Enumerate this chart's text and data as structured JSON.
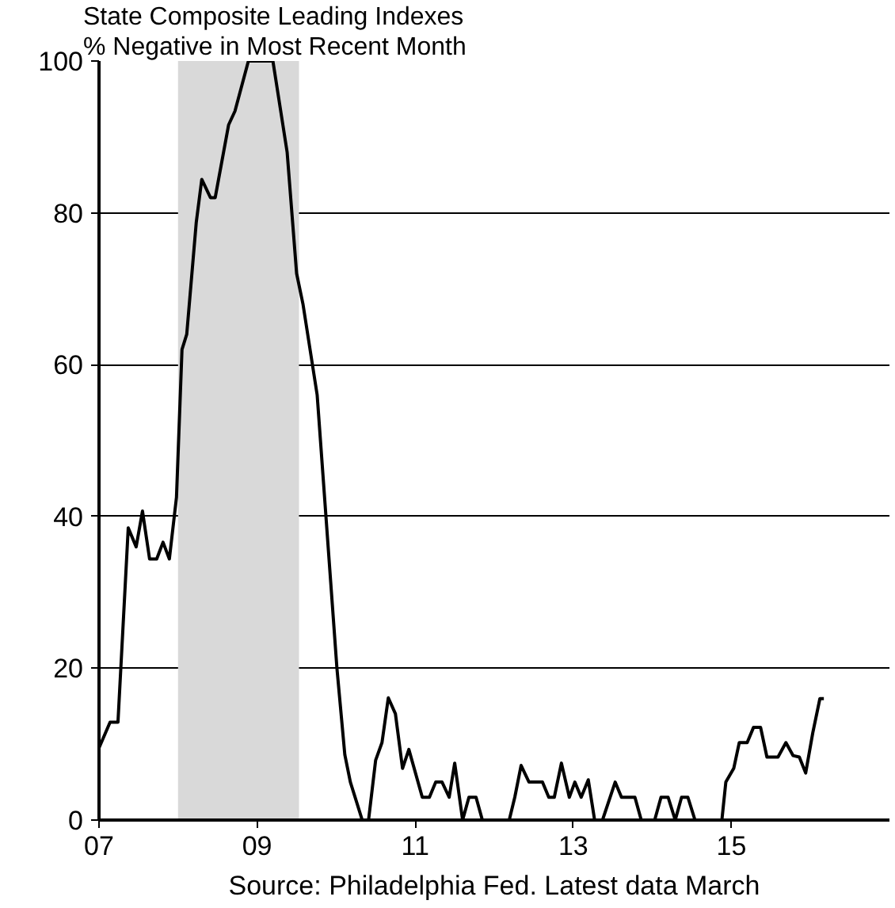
{
  "chart_data": {
    "type": "line",
    "title": "State Composite Leading Indexes",
    "subtitle": "% Negative in Most Recent Month",
    "annotations": [
      "Source: Philadelphia Fed. Latest data March"
    ],
    "x": [
      2007.0,
      2007.14,
      2007.24,
      2007.37,
      2007.47,
      2007.55,
      2007.64,
      2007.73,
      2007.81,
      2007.89,
      2007.98,
      2008.05,
      2008.11,
      2008.23,
      2008.3,
      2008.41,
      2008.47,
      2008.64,
      2008.72,
      2008.89,
      2009.2,
      2009.38,
      2009.5,
      2009.58,
      2009.76,
      2010.01,
      2010.11,
      2010.18,
      2010.33,
      2010.41,
      2010.5,
      2010.58,
      2010.66,
      2010.75,
      2010.84,
      2010.92,
      2011.09,
      2011.18,
      2011.26,
      2011.34,
      2011.43,
      2011.5,
      2011.6,
      2011.68,
      2011.77,
      2011.85,
      2012.19,
      2012.26,
      2012.34,
      2012.44,
      2012.61,
      2012.69,
      2012.76,
      2012.85,
      2012.95,
      2013.02,
      2013.1,
      2013.19,
      2013.27,
      2013.37,
      2013.53,
      2013.61,
      2013.78,
      2013.86,
      2014.03,
      2014.11,
      2014.2,
      2014.29,
      2014.37,
      2014.45,
      2014.54,
      2014.88,
      2014.93,
      2015.03,
      2015.1,
      2015.2,
      2015.28,
      2015.37,
      2015.45,
      2015.59,
      2015.69,
      2015.78,
      2015.86,
      2015.94,
      2016.03,
      2016.12,
      2016.17
    ],
    "series": [
      {
        "color": "#000000",
        "values": [
          9.5,
          12.9,
          12.9,
          38.5,
          36,
          40.7,
          34.4,
          34.4,
          36.6,
          34.4,
          42.5,
          62,
          64,
          78.7,
          84.4,
          82,
          82,
          91.6,
          93.4,
          100,
          100,
          88,
          72,
          68,
          56,
          20,
          8.6,
          5,
          0,
          0,
          7.9,
          10.2,
          16.1,
          14,
          6.8,
          9.3,
          3,
          3,
          5,
          5,
          3,
          7.5,
          0,
          3,
          3,
          0,
          0,
          3,
          7.2,
          5,
          5,
          3,
          3,
          7.5,
          3,
          5,
          3,
          5.3,
          0,
          0,
          5,
          3,
          3,
          0,
          0,
          3,
          3,
          0,
          3,
          3,
          0,
          0,
          5,
          6.8,
          10.2,
          10.2,
          12.2,
          12.2,
          8.3,
          8.3,
          10.2,
          8.5,
          8.3,
          6.2,
          11.5,
          16,
          16
        ]
      }
    ],
    "xlim": [
      2007,
      2017
    ],
    "xticks": [
      {
        "value": 2007,
        "label": "07"
      },
      {
        "value": 2009,
        "label": "09"
      },
      {
        "value": 2011,
        "label": "11"
      },
      {
        "value": 2013,
        "label": "13"
      },
      {
        "value": 2015,
        "label": "15"
      }
    ],
    "ylim": [
      0,
      100
    ],
    "yticks": [
      0,
      20,
      40,
      60,
      80,
      100
    ],
    "grid": "y",
    "marker": "none",
    "line_style": "solid",
    "bands": [
      {
        "axis": "x",
        "from": 2008.0,
        "to": 2009.53,
        "color": "#d9d9d9"
      }
    ]
  }
}
